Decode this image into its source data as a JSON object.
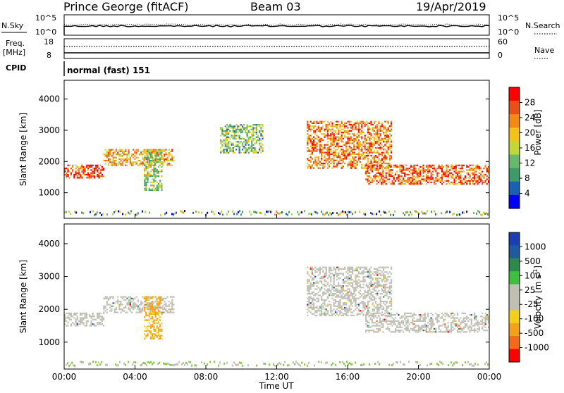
{
  "header": {
    "station": "Prince George (fitACF)",
    "beam": "Beam 03",
    "date": "19/Apr/2019"
  },
  "noise_panel": {
    "left_label": "N.Sky",
    "left_ticks": [
      "10^5",
      "10^0"
    ],
    "right_ticks": [
      "10^5",
      "10^0"
    ],
    "right_label": "N.Search"
  },
  "freq_panel": {
    "left_label_1": "Freq.",
    "left_label_2": "[MHz]",
    "left_ticks": [
      "18",
      "8"
    ],
    "right_ticks": [
      "60",
      "0"
    ],
    "right_label": "Nave"
  },
  "cpid_panel": {
    "label": "CPID",
    "mode": "normal (fast) 151"
  },
  "colors": {
    "power_scale": [
      "#0000ff",
      "#1a5fb4",
      "#3f9a6a",
      "#69b96a",
      "#c2d83a",
      "#f2c21a",
      "#f28a1a",
      "#e8501a",
      "#ff0000"
    ],
    "velocity_scale": [
      "#ff0000",
      "#f26a1a",
      "#f2a11a",
      "#f2cf1a",
      "#bfbfb4",
      "#bfbfb4",
      "#3fbf3f",
      "#2f8a4a",
      "#1f5aa0",
      "#1a3fb4"
    ],
    "ground_scatter": "#bfbfb4"
  },
  "chart_data": [
    {
      "type": "heatmap",
      "title": "",
      "xlabel": "",
      "ylabel": "Slant Range [km]",
      "xlim": [
        "00:00",
        "00:00"
      ],
      "ylim": [
        180,
        4600
      ],
      "y_ticks": [
        "1000",
        "2000",
        "3000",
        "4000"
      ],
      "colorbar": {
        "label": "Power [dB]",
        "range": [
          0,
          30
        ],
        "ticks": [
          "4",
          "8",
          "12",
          "16",
          "20",
          "24",
          "28"
        ]
      },
      "echo_regions_hours_km": [
        {
          "x": [
            0,
            2.2
          ],
          "y": [
            1500,
            1900
          ],
          "value_dB": 26
        },
        {
          "x": [
            2.2,
            6.2
          ],
          "y": [
            1900,
            2400
          ],
          "value_dB": 20
        },
        {
          "x": [
            8.8,
            11.2
          ],
          "y": [
            2300,
            3200
          ],
          "value_dB": 12
        },
        {
          "x": [
            13.7,
            18.5
          ],
          "y": [
            1800,
            3300
          ],
          "value_dB": 22
        },
        {
          "x": [
            17.0,
            24.0
          ],
          "y": [
            1300,
            1900
          ],
          "value_dB": 24
        },
        {
          "x": [
            4.5,
            5.5
          ],
          "y": [
            1100,
            2400
          ],
          "value_dB": 14
        }
      ]
    },
    {
      "type": "heatmap",
      "title": "",
      "xlabel": "Time UT",
      "ylabel": "Slant Range [km]",
      "xlim": [
        "00:00",
        "00:00"
      ],
      "ylim": [
        180,
        4600
      ],
      "x_ticks": [
        "00:00",
        "04:00",
        "08:00",
        "12:00",
        "16:00",
        "20:00",
        "00:00"
      ],
      "y_ticks": [
        "1000",
        "2000",
        "3000",
        "4000"
      ],
      "colorbar": {
        "label": "Velocity [m s",
        "label_exponent": "-1",
        "label_close": "]",
        "ticks": [
          "1000",
          "500",
          "100",
          "25",
          "-25",
          "-100",
          "-500",
          "-1000"
        ]
      },
      "echo_regions_hours_km": [
        {
          "x": [
            0,
            2.2
          ],
          "y": [
            1500,
            1900
          ],
          "velocity": 0
        },
        {
          "x": [
            2.2,
            6.2
          ],
          "y": [
            1900,
            2400
          ],
          "velocity": 0
        },
        {
          "x": [
            4.5,
            5.5
          ],
          "y": [
            1100,
            2400
          ],
          "velocity": -300
        },
        {
          "x": [
            13.7,
            18.5
          ],
          "y": [
            1800,
            3300
          ],
          "velocity": 0
        },
        {
          "x": [
            17.0,
            24.0
          ],
          "y": [
            1300,
            1900
          ],
          "velocity": 0
        }
      ]
    }
  ]
}
